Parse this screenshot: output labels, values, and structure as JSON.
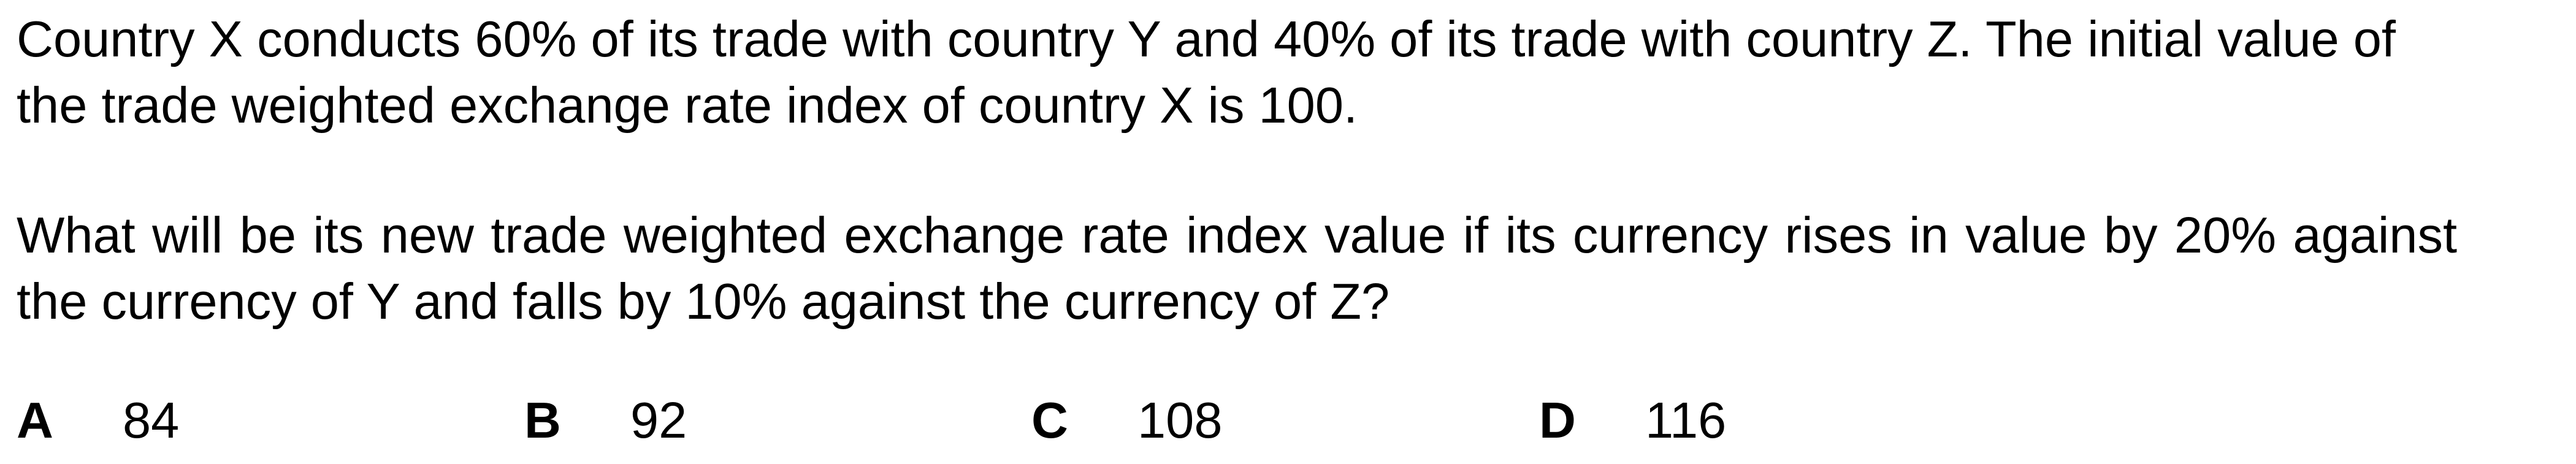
{
  "question": {
    "stem": "Country X conducts 60% of its trade with country Y and 40% of its trade with country Z. The initial value of the trade weighted exchange rate index of country X is 100.",
    "prompt": "What will be its new trade weighted exchange rate index value if its currency rises in value by 20% against the currency of Y and falls by 10% against the currency of Z?"
  },
  "options": [
    {
      "letter": "A",
      "value": "84"
    },
    {
      "letter": "B",
      "value": "92"
    },
    {
      "letter": "C",
      "value": "108"
    },
    {
      "letter": "D",
      "value": "116"
    }
  ]
}
